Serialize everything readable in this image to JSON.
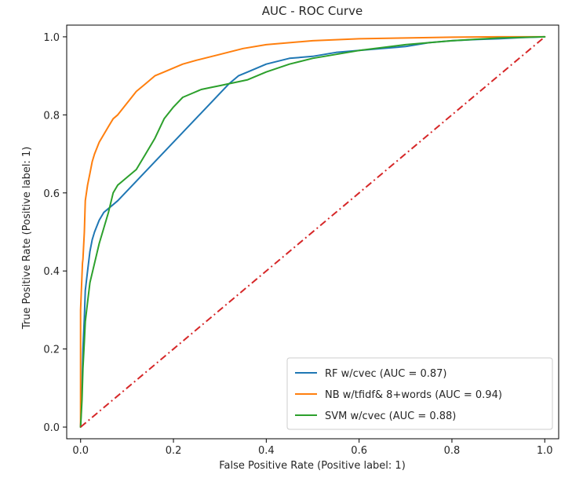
{
  "chart_data": {
    "type": "line",
    "title": "AUC - ROC Curve",
    "xlabel": "False Positive Rate (Positive label: 1)",
    "ylabel": "True Positive Rate (Positive label: 1)",
    "xlim": [
      -0.03,
      1.03
    ],
    "ylim": [
      -0.03,
      1.03
    ],
    "xticks": [
      0.0,
      0.2,
      0.4,
      0.6,
      0.8,
      1.0
    ],
    "yticks": [
      0.0,
      0.2,
      0.4,
      0.6,
      0.8,
      1.0
    ],
    "tick_labels_x": [
      "0.0",
      "0.2",
      "0.4",
      "0.6",
      "0.8",
      "1.0"
    ],
    "tick_labels_y": [
      "0.0",
      "0.2",
      "0.4",
      "0.6",
      "0.8",
      "1.0"
    ],
    "grid": false,
    "legend": {
      "position": "lower-right"
    },
    "series": [
      {
        "name": "RF w/cvec (AUC = 0.87)",
        "color": "#1f77b4",
        "x": [
          0.0,
          0.003,
          0.005,
          0.008,
          0.01,
          0.015,
          0.02,
          0.025,
          0.03,
          0.04,
          0.05,
          0.06,
          0.07,
          0.08,
          0.32,
          0.34,
          0.36,
          0.38,
          0.4,
          0.45,
          0.5,
          0.55,
          0.6,
          0.65,
          0.7,
          0.75,
          0.8,
          0.85,
          0.9,
          0.95,
          1.0
        ],
        "y": [
          0.0,
          0.1,
          0.2,
          0.28,
          0.35,
          0.4,
          0.45,
          0.48,
          0.5,
          0.53,
          0.55,
          0.56,
          0.57,
          0.58,
          0.88,
          0.9,
          0.91,
          0.92,
          0.93,
          0.945,
          0.95,
          0.96,
          0.965,
          0.97,
          0.975,
          0.985,
          0.99,
          0.993,
          0.995,
          0.998,
          1.0
        ]
      },
      {
        "name": "NB w/tfidf& 8+words (AUC = 0.94)",
        "color": "#ff7f0e",
        "x": [
          0.0,
          0.0,
          0.004,
          0.005,
          0.008,
          0.01,
          0.015,
          0.02,
          0.025,
          0.03,
          0.04,
          0.05,
          0.06,
          0.07,
          0.08,
          0.1,
          0.12,
          0.14,
          0.16,
          0.18,
          0.2,
          0.22,
          0.25,
          0.3,
          0.35,
          0.4,
          0.5,
          0.6,
          0.7,
          0.8,
          0.9,
          1.0
        ],
        "y": [
          0.0,
          0.3,
          0.42,
          0.43,
          0.5,
          0.58,
          0.62,
          0.65,
          0.68,
          0.7,
          0.73,
          0.75,
          0.77,
          0.79,
          0.8,
          0.83,
          0.86,
          0.88,
          0.9,
          0.91,
          0.92,
          0.93,
          0.94,
          0.955,
          0.97,
          0.98,
          0.99,
          0.995,
          0.997,
          0.999,
          1.0,
          1.0
        ]
      },
      {
        "name": "SVM w/cvec (AUC = 0.88)",
        "color": "#2ca02c",
        "x": [
          0.0,
          0.003,
          0.005,
          0.008,
          0.01,
          0.015,
          0.02,
          0.03,
          0.04,
          0.05,
          0.06,
          0.07,
          0.08,
          0.09,
          0.1,
          0.12,
          0.14,
          0.16,
          0.18,
          0.2,
          0.22,
          0.24,
          0.26,
          0.28,
          0.3,
          0.32,
          0.34,
          0.36,
          0.4,
          0.45,
          0.5,
          0.6,
          0.7,
          0.8,
          0.9,
          1.0
        ],
        "y": [
          0.0,
          0.07,
          0.15,
          0.22,
          0.27,
          0.32,
          0.37,
          0.42,
          0.47,
          0.51,
          0.55,
          0.6,
          0.62,
          0.63,
          0.64,
          0.66,
          0.7,
          0.74,
          0.79,
          0.82,
          0.845,
          0.855,
          0.865,
          0.87,
          0.875,
          0.88,
          0.885,
          0.89,
          0.91,
          0.93,
          0.945,
          0.965,
          0.98,
          0.99,
          0.997,
          1.0
        ]
      },
      {
        "name": "",
        "color": "#d62728",
        "style": "dashdot",
        "x": [
          0.0,
          1.0
        ],
        "y": [
          0.0,
          1.0
        ]
      }
    ]
  }
}
